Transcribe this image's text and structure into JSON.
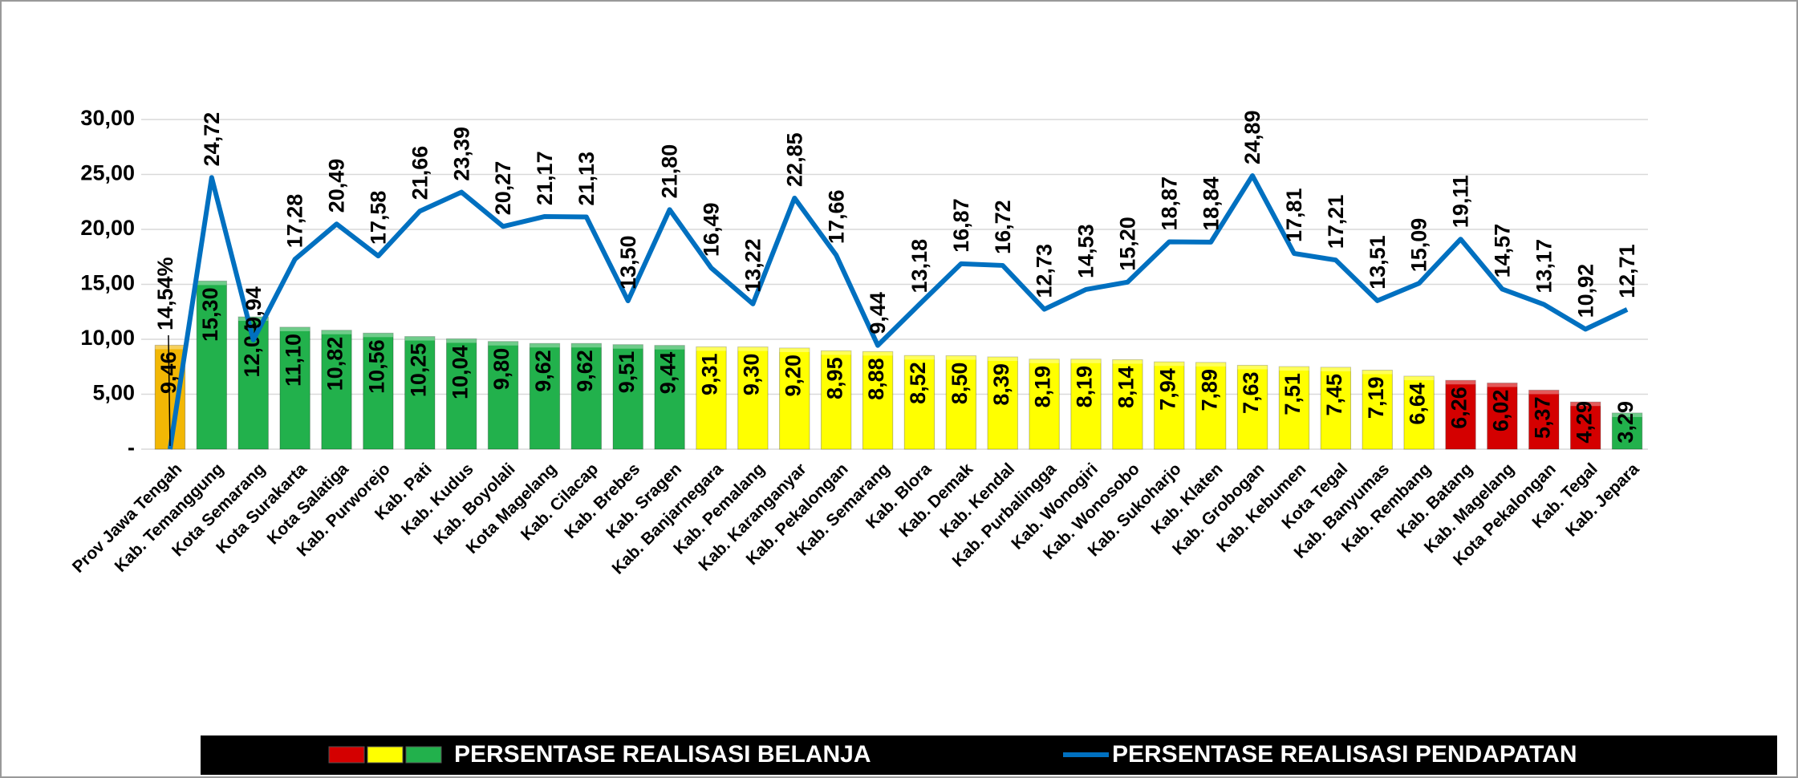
{
  "chart_data": {
    "type": "bar_line",
    "categories": [
      "Prov Jawa Tengah",
      "Kab. Temanggung",
      "Kota Semarang",
      "Kota Surakarta",
      "Kota Salatiga",
      "Kab. Purworejo",
      "Kab. Pati",
      "Kab. Kudus",
      "Kab. Boyolali",
      "Kota Magelang",
      "Kab. Cilacap",
      "Kab. Brebes",
      "Kab. Sragen",
      "Kab. Banjarnegara",
      "Kab. Pemalang",
      "Kab. Karanganyar",
      "Kab. Pekalongan",
      "Kab. Semarang",
      "Kab. Blora",
      "Kab. Demak",
      "Kab. Kendal",
      "Kab. Purbalingga",
      "Kab. Wonogiri",
      "Kab. Wonosobo",
      "Kab. Sukoharjo",
      "Kab. Klaten",
      "Kab. Grobogan",
      "Kab. Kebumen",
      "Kota Tegal",
      "Kab. Banyumas",
      "Kab. Rembang",
      "Kab. Batang",
      "Kab. Magelang",
      "Kota Pekalongan",
      "Kab. Tegal",
      "Kab. Jepara"
    ],
    "series": [
      {
        "name": "PERSENTASE REALISASI BELANJA",
        "kind": "bar",
        "legend_colors": [
          "#d40000",
          "#ffff00",
          "#22b14c"
        ],
        "colors": [
          "#f2b705",
          "#22b14c",
          "#22b14c",
          "#22b14c",
          "#22b14c",
          "#22b14c",
          "#22b14c",
          "#22b14c",
          "#22b14c",
          "#22b14c",
          "#22b14c",
          "#22b14c",
          "#22b14c",
          "#ffff00",
          "#ffff00",
          "#ffff00",
          "#ffff00",
          "#ffff00",
          "#ffff00",
          "#ffff00",
          "#ffff00",
          "#ffff00",
          "#ffff00",
          "#ffff00",
          "#ffff00",
          "#ffff00",
          "#ffff00",
          "#ffff00",
          "#ffff00",
          "#ffff00",
          "#ffff00",
          "#d40000",
          "#d40000",
          "#d40000",
          "#d40000",
          "#22b14c"
        ],
        "values": [
          9.46,
          15.3,
          12.04,
          11.1,
          10.82,
          10.56,
          10.25,
          10.04,
          9.8,
          9.62,
          9.62,
          9.51,
          9.44,
          9.31,
          9.3,
          9.2,
          8.95,
          8.88,
          8.52,
          8.5,
          8.39,
          8.19,
          8.19,
          8.14,
          7.94,
          7.89,
          7.63,
          7.51,
          7.45,
          7.19,
          6.64,
          6.26,
          6.02,
          5.37,
          4.29,
          3.29
        ],
        "value_labels": [
          "9,46",
          "15,30",
          "12,04",
          "11,10",
          "10,82",
          "10,56",
          "10,25",
          "10,04",
          "9,80",
          "9,62",
          "9,62",
          "9,51",
          "9,44",
          "9,31",
          "9,30",
          "9,20",
          "8,95",
          "8,88",
          "8,52",
          "8,50",
          "8,39",
          "8,19",
          "8,19",
          "8,14",
          "7,94",
          "7,89",
          "7,63",
          "7,51",
          "7,45",
          "7,19",
          "6,64",
          "6,26",
          "6,02",
          "5,37",
          "4,29",
          "3,29"
        ]
      },
      {
        "name": "PERSENTASE REALISASI PENDAPATAN",
        "kind": "line",
        "color": "#0070c0",
        "values": [
          0,
          24.72,
          9.94,
          17.28,
          20.49,
          17.58,
          21.66,
          23.39,
          20.27,
          21.17,
          21.13,
          13.5,
          21.8,
          16.49,
          13.22,
          22.85,
          17.66,
          9.44,
          13.18,
          16.87,
          16.72,
          12.73,
          14.53,
          15.2,
          18.87,
          18.84,
          24.89,
          17.81,
          17.21,
          13.51,
          15.09,
          19.11,
          14.57,
          13.17,
          10.92,
          12.71
        ],
        "value_labels": [
          null,
          "24,72",
          "9,94",
          "17,28",
          "20,49",
          "17,58",
          "21,66",
          "23,39",
          "20,27",
          "21,17",
          "21,13",
          "13,50",
          "21,80",
          "16,49",
          "13,22",
          "22,85",
          "17,66",
          "9,44",
          "13,18",
          "16,87",
          "16,72",
          "12,73",
          "14,53",
          "15,20",
          "18,87",
          "18,84",
          "24,89",
          "17,81",
          "17,21",
          "13,51",
          "15,09",
          "19,11",
          "14,57",
          "13,17",
          "10,92",
          "12,71"
        ]
      }
    ],
    "annotation": "14,54%",
    "ylim": [
      0,
      30
    ],
    "yticks": [
      {
        "value": 0,
        "label": "-"
      },
      {
        "value": 5,
        "label": "5,00"
      },
      {
        "value": 10,
        "label": "10,00"
      },
      {
        "value": 15,
        "label": "15,00"
      },
      {
        "value": 20,
        "label": "20,00"
      },
      {
        "value": 25,
        "label": "25,00"
      },
      {
        "value": 30,
        "label": "30,00"
      }
    ],
    "grid": true,
    "legend": "bottom"
  }
}
